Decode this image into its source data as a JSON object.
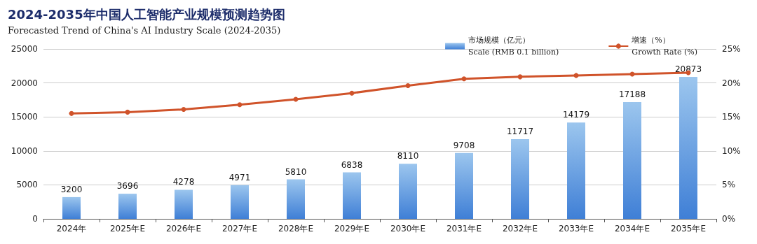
{
  "chart_data": {
    "type": "bar",
    "title": "2024-2035年中国人工智能产业规模预测趋势图",
    "subtitle": "Forecasted Trend of China's AI Industry Scale (2024-2035)",
    "categories": [
      "2024年",
      "2025年E",
      "2026年E",
      "2027年E",
      "2028年E",
      "2029年E",
      "2030年E",
      "2031年E",
      "2032年E",
      "2033年E",
      "2034年E",
      "2035年E"
    ],
    "series": [
      {
        "name": "市场规模（亿元）\nScale (RMB 0.1 billion)",
        "color": "#3f7fd6",
        "values": [
          3200,
          3696,
          4278,
          4971,
          5810,
          6838,
          8110,
          9708,
          11717,
          14179,
          17188,
          20873
        ],
        "value_labels": [
          "3200",
          "3696",
          "4278",
          "4971",
          "5810",
          "6838",
          "8110",
          "9708",
          "11717",
          "14179",
          "17188",
          "20873"
        ]
      },
      {
        "name": "增速（%）\nGrowth Rate (%)",
        "type": "line",
        "axis": "y2",
        "color": "#d0532a",
        "marker": "circle",
        "values": [
          15.5,
          15.7,
          16.1,
          16.8,
          17.6,
          18.5,
          19.6,
          20.6,
          20.9,
          21.1,
          21.3,
          21.5
        ]
      }
    ],
    "ylim": [
      0,
      25000
    ],
    "yticks": [
      0,
      5000,
      10000,
      15000,
      20000,
      25000
    ],
    "y2lim": [
      0,
      25
    ],
    "y2ticks": [
      {
        "value": 0,
        "label": "0%"
      },
      {
        "value": 5,
        "label": "5%"
      },
      {
        "value": 10,
        "label": "10%"
      },
      {
        "value": 15,
        "label": "15%"
      },
      {
        "value": 20,
        "label": "20%"
      },
      {
        "value": 25,
        "label": "25%"
      }
    ],
    "grid": "y",
    "legend": "top right"
  }
}
